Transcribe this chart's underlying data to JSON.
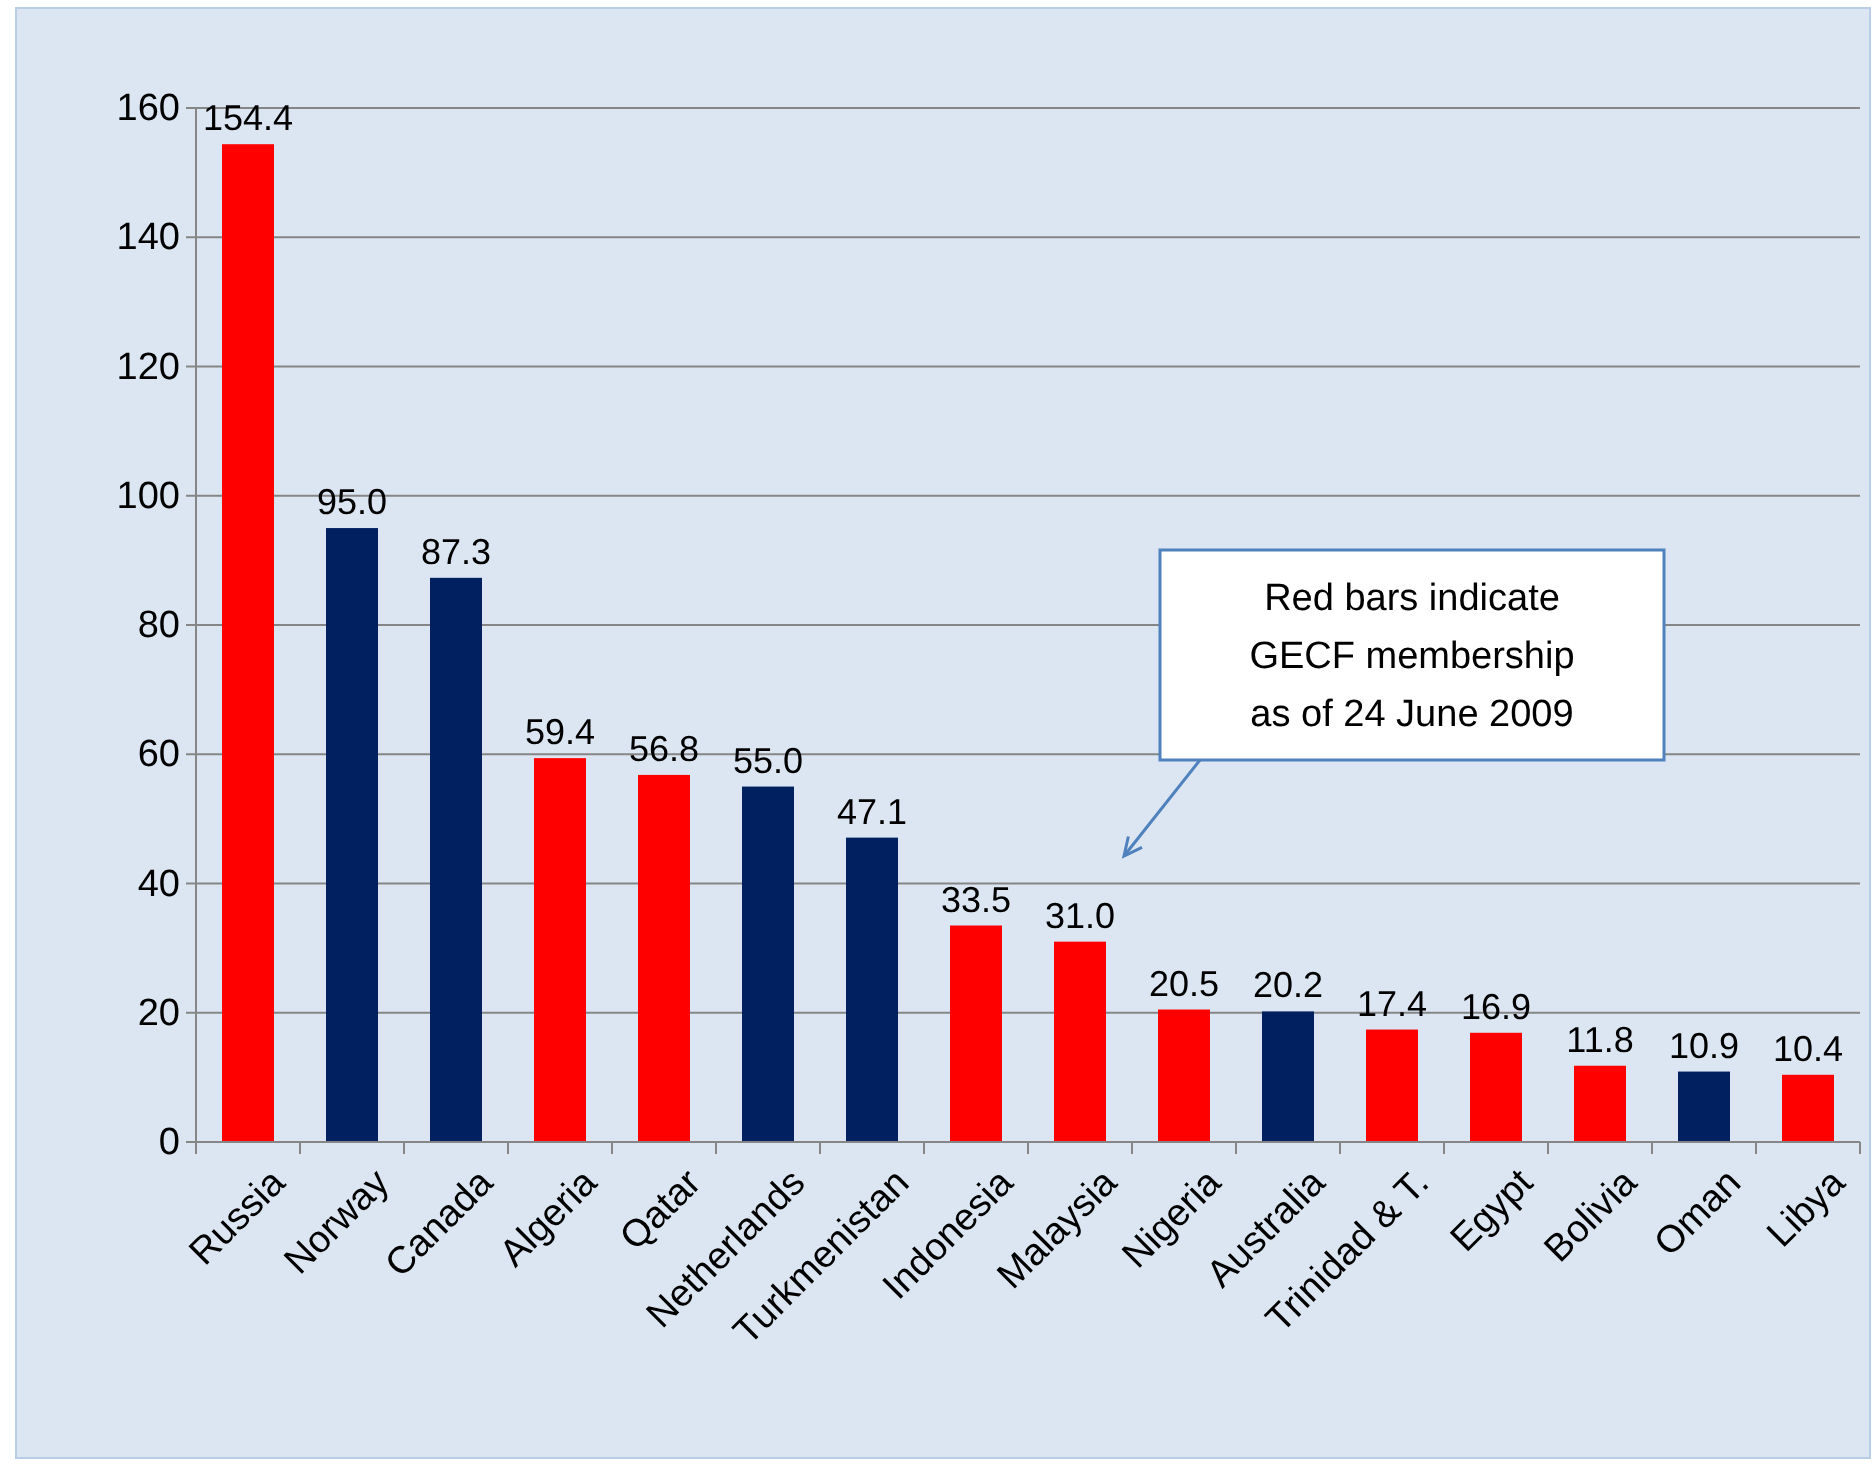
{
  "chart_data": {
    "type": "bar",
    "categories": [
      "Russia",
      "Norway",
      "Canada",
      "Algeria",
      "Qatar",
      "Netherlands",
      "Turkmenistan",
      "Indonesia",
      "Malaysia",
      "Nigeria",
      "Australia",
      "Trinidad & T.",
      "Egypt",
      "Bolivia",
      "Oman",
      "Libya"
    ],
    "values": [
      154.4,
      95.0,
      87.3,
      59.4,
      56.8,
      55.0,
      47.1,
      33.5,
      31.0,
      20.5,
      20.2,
      17.4,
      16.9,
      11.8,
      10.9,
      10.4
    ],
    "colors": [
      "#ff0000",
      "#002060",
      "#002060",
      "#ff0000",
      "#ff0000",
      "#002060",
      "#002060",
      "#ff0000",
      "#ff0000",
      "#ff0000",
      "#002060",
      "#ff0000",
      "#ff0000",
      "#ff0000",
      "#002060",
      "#ff0000"
    ],
    "value_labels": [
      "154.4",
      "95.0",
      "87.3",
      "59.4",
      "56.8",
      "55.0",
      "47.1",
      "33.5",
      "31.0",
      "20.5",
      "20.2",
      "17.4",
      "16.9",
      "11.8",
      "10.9",
      "10.4"
    ],
    "ylim": [
      0,
      160
    ],
    "yticks": [
      0,
      20,
      40,
      60,
      80,
      100,
      120,
      140,
      160
    ],
    "grid": "y",
    "annotations": [
      "Red bars indicate\nGECF membership\nas of 24 June 2009"
    ]
  }
}
